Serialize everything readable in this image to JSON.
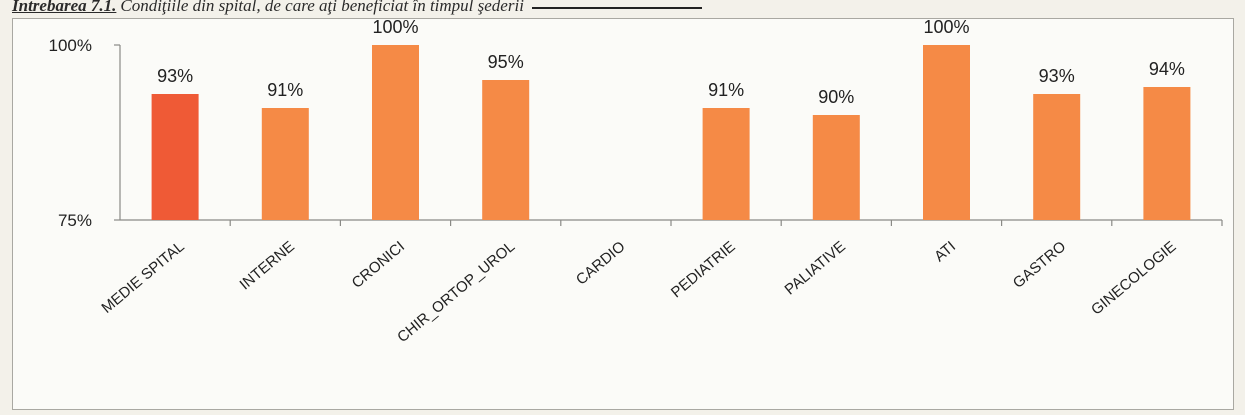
{
  "caption": {
    "lead": "Intrebarea 7.1.",
    "rest": "Condiţiile din spital, de care aţi beneficiat în timpul şederii"
  },
  "colors": {
    "average_bar": "#ef5a36",
    "ward_bar": "#f58a46",
    "axis": "#8a8a86",
    "frame": "#a9a8a2"
  },
  "chart_data": {
    "type": "bar",
    "categories": [
      "MEDIE SPITAL",
      "INTERNE",
      "CRONICI",
      "CHIR_ORTOP_UROL",
      "CARDIO",
      "PEDIATRIE",
      "PALIATIVE",
      "ATI",
      "GASTRO",
      "GINECOLOGIE"
    ],
    "values": [
      93,
      91,
      100,
      95,
      null,
      91,
      90,
      100,
      93,
      94
    ],
    "value_labels": [
      "93%",
      "91%",
      "100%",
      "95%",
      "",
      "91%",
      "90%",
      "100%",
      "93%",
      "94%"
    ],
    "highlight_index": 0,
    "title": "",
    "xlabel": "",
    "ylabel": "",
    "ylim": [
      75,
      100
    ],
    "y_ticks": [
      {
        "value": 100,
        "label": "100%"
      },
      {
        "value": 75,
        "label": "75%"
      }
    ],
    "grid": false,
    "legend": "none"
  }
}
